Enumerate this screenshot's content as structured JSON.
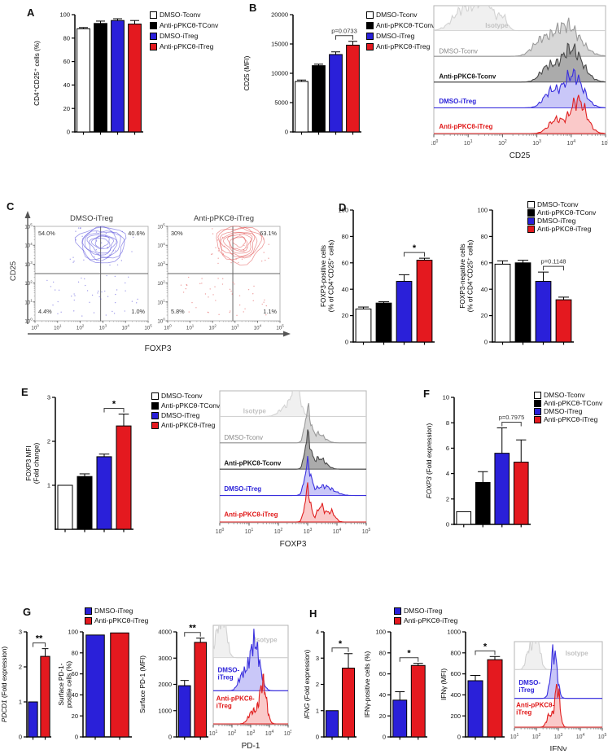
{
  "panels": {
    "A": "A",
    "B": "B",
    "C": "C",
    "D": "D",
    "E": "E",
    "F": "F",
    "G": "G",
    "H": "H"
  },
  "colors": {
    "blue": "#2a20d9",
    "red": "#e4191f",
    "black": "#000000",
    "white": "#ffffff"
  },
  "legends": {
    "four": {
      "items": [
        {
          "label": "DMSO-Tconv",
          "color": "#ffffff"
        },
        {
          "label": "Anti-pPKCθ-TConv",
          "color": "#000000"
        },
        {
          "label": "DMSO-iTreg",
          "color": "#2a20d9"
        },
        {
          "label": "Anti-pPKCθ-iTreg",
          "color": "#e4191f"
        }
      ]
    },
    "two": {
      "items": [
        {
          "label": "DMSO-iTreg",
          "color": "#2a20d9"
        },
        {
          "label": "Anti-pPKCθ-iTreg",
          "color": "#e4191f"
        }
      ]
    }
  },
  "chart_data": [
    {
      "id": "A",
      "type": "bar",
      "ylabel": [
        "CD4⁺CD25⁺ cells (%)"
      ],
      "ylim": [
        0,
        100
      ],
      "yticks": [
        0,
        20,
        40,
        60,
        80,
        100
      ],
      "categories": [
        "DMSO-Tconv",
        "Anti-pPKCθ-TConv",
        "DMSO-iTreg",
        "Anti-pPKCθ-iTreg"
      ],
      "values": [
        88,
        92.5,
        95,
        92
      ],
      "errors": [
        1,
        2,
        1.5,
        3
      ],
      "bar_colors": [
        "#ffffff",
        "#000000",
        "#2a20d9",
        "#e4191f"
      ]
    },
    {
      "id": "B",
      "type": "bar",
      "ylabel": [
        "CD25 (MFI)"
      ],
      "ylim": [
        0,
        20000
      ],
      "yticks": [
        0,
        5000,
        10000,
        15000,
        20000
      ],
      "categories": [
        "DMSO-Tconv",
        "Anti-pPKCθ-TConv",
        "DMSO-iTreg",
        "Anti-pPKCθ-iTreg"
      ],
      "values": [
        8600,
        11300,
        13200,
        14800
      ],
      "errors": [
        250,
        250,
        450,
        650
      ],
      "bar_colors": [
        "#ffffff",
        "#000000",
        "#2a20d9",
        "#e4191f"
      ],
      "sig": {
        "text": "p=0.0733",
        "from": 2,
        "to": 3
      }
    },
    {
      "id": "B_hist",
      "type": "ridge",
      "xlabel": "CD25",
      "xlim": [
        0,
        5
      ],
      "xticks_exp": [
        0,
        1,
        2,
        3,
        4,
        5
      ],
      "series": [
        {
          "label": "Isotype",
          "stroke": "#d2d2d2",
          "fill": "rgba(228,228,228,0.55)",
          "label_color": "#c2c2c2",
          "bold": true,
          "label_pos": [
            0.3,
            0.17
          ],
          "seed": 1,
          "peaks": [
            {
              "c": 0.9,
              "w": 0.45,
              "a": 0.75
            },
            {
              "c": 1.5,
              "w": 0.3,
              "a": 1
            },
            {
              "c": 2.0,
              "w": 0.18,
              "a": 0.45
            }
          ]
        },
        {
          "label": "DMSO-Tconv",
          "stroke": "#9a9a9a",
          "fill": "rgba(176,176,176,0.5)",
          "label_color": "#8a8a8a",
          "bold": false,
          "label_pos": [
            0.03,
            0.37
          ],
          "seed": 2,
          "peaks": [
            {
              "c": 3.85,
              "w": 0.55,
              "a": 1
            },
            {
              "c": 3.1,
              "w": 0.35,
              "a": 0.4
            }
          ]
        },
        {
          "label": "Anti-pPKCθ-Tconv",
          "stroke": "#4a4a4a",
          "fill": "rgba(115,115,115,0.6)",
          "label_color": "#161616",
          "bold": true,
          "label_pos": [
            0.03,
            0.565
          ],
          "seed": 3,
          "peaks": [
            {
              "c": 4.0,
              "w": 0.45,
              "a": 1
            },
            {
              "c": 3.3,
              "w": 0.3,
              "a": 0.4
            }
          ]
        },
        {
          "label": "DMSO-iTreg",
          "stroke": "#3a30dd",
          "fill": "rgba(100,95,235,0.35)",
          "label_color": "#2a20d9",
          "bold": true,
          "label_pos": [
            0.03,
            0.76
          ],
          "seed": 4,
          "peaks": [
            {
              "c": 4.05,
              "w": 0.4,
              "a": 1
            },
            {
              "c": 3.4,
              "w": 0.3,
              "a": 0.45
            }
          ]
        },
        {
          "label": "Anti-pPKCθ-iTreg",
          "stroke": "#e02020",
          "fill": "rgba(242,100,100,0.35)",
          "label_color": "#e01818",
          "bold": true,
          "label_pos": [
            0.03,
            0.955
          ],
          "seed": 5,
          "peaks": [
            {
              "c": 4.2,
              "w": 0.33,
              "a": 1
            },
            {
              "c": 3.55,
              "w": 0.3,
              "a": 0.4
            }
          ]
        }
      ]
    },
    {
      "id": "C",
      "type": "contour_panel",
      "xlabel": "FOXP3",
      "ylabel": "CD25",
      "xticks_exp": [
        0,
        1,
        2,
        3,
        4,
        5
      ],
      "yticks_exp": [
        0,
        1,
        2,
        3,
        4,
        5
      ],
      "gate": {
        "x": 2.9,
        "y": 2.5
      },
      "plots": [
        {
          "title": "DMSO-iTreg",
          "color": "#4a42d8",
          "center": [
            2.95,
            4.15
          ],
          "seed": 11,
          "quadrants": {
            "ul": "54.0%",
            "ur": "40.6%",
            "ll": "4.4%",
            "lr": "1.0%"
          }
        },
        {
          "title": "Anti-pPKCθ-iTreg",
          "color": "#e04545",
          "center": [
            3.2,
            4.2
          ],
          "seed": 17,
          "quadrants": {
            "ul": "30%",
            "ur": "63.1%",
            "ll": "5.8%",
            "lr": "1.1%"
          }
        }
      ]
    },
    {
      "id": "D1",
      "type": "bar",
      "ylabel": [
        "FOXP3-positive cells",
        "(% of CD4⁺CD25⁺ cells)"
      ],
      "ylim": [
        0,
        100
      ],
      "yticks": [
        0,
        20,
        40,
        60,
        80,
        100
      ],
      "categories": [
        "DMSO-Tconv",
        "Anti-pPKCθ-TConv",
        "DMSO-iTreg",
        "Anti-pPKCθ-iTreg"
      ],
      "values": [
        25,
        29.5,
        46,
        62
      ],
      "errors": [
        1.5,
        1,
        5,
        1.5
      ],
      "bar_colors": [
        "#ffffff",
        "#000000",
        "#2a20d9",
        "#e4191f"
      ],
      "sig": {
        "text": "*",
        "from": 2,
        "to": 3
      }
    },
    {
      "id": "D2",
      "type": "bar",
      "ylabel": [
        "FOXP3-negative cells",
        "(% of CD4⁺CD25⁺ cells)"
      ],
      "ylim": [
        0,
        100
      ],
      "yticks": [
        0,
        20,
        40,
        60,
        80,
        100
      ],
      "categories": [
        "DMSO-Tconv",
        "Anti-pPKCθ-TConv",
        "DMSO-iTreg",
        "Anti-pPKCθ-iTreg"
      ],
      "values": [
        59,
        60,
        46,
        32
      ],
      "errors": [
        2.5,
        2,
        7,
        2
      ],
      "bar_colors": [
        "#ffffff",
        "#000000",
        "#2a20d9",
        "#e4191f"
      ],
      "sig": {
        "text": "p=0.1148",
        "from": 2,
        "to": 3
      }
    },
    {
      "id": "E",
      "type": "bar",
      "ylabel": [
        "FOXP3 MFI",
        "(Fold change)"
      ],
      "ylim": [
        0,
        3
      ],
      "yticks": [
        1,
        2,
        3
      ],
      "categories": [
        "DMSO-Tconv",
        "Anti-pPKCθ-TConv",
        "DMSO-iTreg",
        "Anti-pPKCθ-iTreg"
      ],
      "values": [
        1,
        1.2,
        1.65,
        2.35
      ],
      "errors": [
        0,
        0.06,
        0.06,
        0.27
      ],
      "bar_colors": [
        "#ffffff",
        "#000000",
        "#2a20d9",
        "#e4191f"
      ],
      "sig": {
        "text": "*",
        "from": 2,
        "to": 3
      }
    },
    {
      "id": "E_hist",
      "type": "ridge",
      "xlabel": "FOXP3",
      "xlim": [
        0,
        5
      ],
      "xticks_exp": [
        0,
        1,
        2,
        3,
        4,
        5
      ],
      "series": [
        {
          "label": "Isotype",
          "stroke": "#d2d2d2",
          "fill": "rgba(228,228,228,0.55)",
          "label_color": "#c2c2c2",
          "bold": true,
          "label_pos": [
            0.16,
            0.17
          ],
          "seed": 6,
          "peaks": [
            {
              "c": 2.6,
              "w": 0.2,
              "a": 1
            },
            {
              "c": 2.25,
              "w": 0.3,
              "a": 0.3
            }
          ]
        },
        {
          "label": "DMSO-Tconv",
          "stroke": "#9a9a9a",
          "fill": "rgba(176,176,176,0.5)",
          "label_color": "#8a8a8a",
          "bold": false,
          "label_pos": [
            0.03,
            0.37
          ],
          "seed": 7,
          "peaks": [
            {
              "c": 3.0,
              "w": 0.14,
              "a": 1
            },
            {
              "c": 3.35,
              "w": 0.3,
              "a": 0.3
            }
          ]
        },
        {
          "label": "Anti-pPKCθ-Tconv",
          "stroke": "#4a4a4a",
          "fill": "rgba(115,115,115,0.6)",
          "label_color": "#161616",
          "bold": true,
          "label_pos": [
            0.03,
            0.565
          ],
          "seed": 8,
          "peaks": [
            {
              "c": 3.0,
              "w": 0.14,
              "a": 1
            },
            {
              "c": 3.4,
              "w": 0.3,
              "a": 0.35
            }
          ]
        },
        {
          "label": "DMSO-iTreg",
          "stroke": "#3a30dd",
          "fill": "rgba(100,95,235,0.35)",
          "label_color": "#2a20d9",
          "bold": true,
          "label_pos": [
            0.03,
            0.76
          ],
          "seed": 9,
          "peaks": [
            {
              "c": 3.0,
              "w": 0.15,
              "a": 1
            },
            {
              "c": 3.55,
              "w": 0.45,
              "a": 0.32
            }
          ]
        },
        {
          "label": "Anti-pPKCθ-iTreg",
          "stroke": "#e02020",
          "fill": "rgba(242,100,100,0.35)",
          "label_color": "#e01818",
          "bold": true,
          "label_pos": [
            0.03,
            0.955
          ],
          "seed": 10,
          "peaks": [
            {
              "c": 3.0,
              "w": 0.14,
              "a": 1
            },
            {
              "c": 3.45,
              "w": 0.18,
              "a": 0.5
            },
            {
              "c": 3.8,
              "w": 0.18,
              "a": 0.32
            }
          ]
        }
      ]
    },
    {
      "id": "F",
      "type": "bar",
      "ylabel": [
        "FOXP3 (Fold expression)"
      ],
      "italic_prefix": "FOXP3",
      "ylim": [
        0,
        10
      ],
      "yticks": [
        0,
        2,
        4,
        6,
        8,
        10
      ],
      "categories": [
        "DMSO-Tconv",
        "Anti-pPKCθ-TConv",
        "DMSO-iTreg",
        "Anti-pPKCθ-iTreg"
      ],
      "values": [
        1,
        3.3,
        5.6,
        4.9
      ],
      "errors": [
        0,
        0.85,
        2,
        1.75
      ],
      "bar_colors": [
        "#ffffff",
        "#000000",
        "#2a20d9",
        "#e4191f"
      ],
      "sig": {
        "text": "p=0.7975",
        "from": 2,
        "to": 3
      }
    },
    {
      "id": "G1",
      "type": "bar",
      "ylabel": [
        "PDCD1 (Fold expression)"
      ],
      "italic_prefix": "PDCD1",
      "ylim": [
        0,
        3
      ],
      "yticks": [
        0,
        1,
        2,
        3
      ],
      "categories": [
        "DMSO-iTreg",
        "Anti-pPKCθ-iTreg"
      ],
      "values": [
        1,
        2.3
      ],
      "errors": [
        0,
        0.22
      ],
      "bar_colors": [
        "#2a20d9",
        "#e4191f"
      ],
      "sig": {
        "text": "**",
        "from": 0,
        "to": 1
      }
    },
    {
      "id": "G2",
      "type": "bar",
      "ylabel": [
        "Surface PD-1-",
        "positie cells (%)"
      ],
      "ylim": [
        0,
        100
      ],
      "yticks": [
        0,
        20,
        40,
        60,
        80,
        100
      ],
      "categories": [
        "DMSO-iTreg",
        "Anti-pPKCθ-iTreg"
      ],
      "values": [
        97,
        99
      ],
      "errors": [
        0,
        0
      ],
      "bar_colors": [
        "#2a20d9",
        "#e4191f"
      ]
    },
    {
      "id": "G3",
      "type": "bar",
      "ylabel": [
        "Surface PD-1 (MFI)"
      ],
      "ylim": [
        0,
        4000
      ],
      "yticks": [
        0,
        1000,
        2000,
        3000,
        4000
      ],
      "categories": [
        "DMSO-iTreg",
        "Anti-pPKCθ-iTreg"
      ],
      "values": [
        1950,
        3600
      ],
      "errors": [
        200,
        160
      ],
      "bar_colors": [
        "#2a20d9",
        "#e4191f"
      ],
      "sig": {
        "text": "**",
        "from": 0,
        "to": 1
      }
    },
    {
      "id": "G_hist",
      "type": "ridge",
      "xlabel": "PD-1",
      "xlim": [
        1,
        5
      ],
      "xticks_exp": [
        1,
        2,
        3,
        4,
        5
      ],
      "series": [
        {
          "label": "Isotype",
          "stroke": "#d2d2d2",
          "fill": "rgba(228,228,228,0.55)",
          "label_color": "#c2c2c2",
          "bold": true,
          "label_pos": [
            0.55,
            0.17
          ],
          "seed": 21,
          "peaks": [
            {
              "c": 1.55,
              "w": 0.25,
              "a": 1
            },
            {
              "c": 1.2,
              "w": 0.18,
              "a": 0.55
            }
          ]
        },
        {
          "label": [
            "DMSO-",
            "iTreg"
          ],
          "stroke": "#3a30dd",
          "fill": "rgba(100,95,235,0.35)",
          "label_color": "#2a20d9",
          "bold": true,
          "label_pos": [
            0.06,
            0.47
          ],
          "amp": 1.25,
          "seed": 22,
          "peaks": [
            {
              "c": 3.2,
              "w": 0.38,
              "a": 1
            },
            {
              "c": 2.55,
              "w": 0.3,
              "a": 0.3
            }
          ]
        },
        {
          "label": [
            "Anti-pPKCθ-",
            "iTreg"
          ],
          "stroke": "#e02020",
          "fill": "rgba(242,100,100,0.35)",
          "label_color": "#e01818",
          "bold": true,
          "label_pos": [
            0.04,
            0.76
          ],
          "seed": 23,
          "peaks": [
            {
              "c": 3.65,
              "w": 0.26,
              "a": 1
            },
            {
              "c": 3.1,
              "w": 0.3,
              "a": 0.3
            }
          ]
        }
      ]
    },
    {
      "id": "H1",
      "type": "bar",
      "ylabel": [
        "IFNG (Fold expression)"
      ],
      "italic_prefix": "IFNG",
      "ylim": [
        0,
        4
      ],
      "yticks": [
        0,
        1,
        2,
        3,
        4
      ],
      "categories": [
        "DMSO-iTreg",
        "Anti-pPKCθ-iTreg"
      ],
      "values": [
        1,
        2.62
      ],
      "errors": [
        0,
        0.55
      ],
      "bar_colors": [
        "#2a20d9",
        "#e4191f"
      ],
      "sig": {
        "text": "*",
        "from": 0,
        "to": 1
      }
    },
    {
      "id": "H2",
      "type": "bar",
      "ylabel": [
        "IFNγ-positive cells (%)"
      ],
      "ylim": [
        0,
        100
      ],
      "yticks": [
        0,
        20,
        40,
        60,
        80,
        100
      ],
      "categories": [
        "DMSO-iTreg",
        "Anti-pPKCθ-iTreg"
      ],
      "values": [
        35,
        68
      ],
      "errors": [
        8,
        2
      ],
      "bar_colors": [
        "#2a20d9",
        "#e4191f"
      ],
      "sig": {
        "text": "*",
        "from": 0,
        "to": 1
      }
    },
    {
      "id": "H3",
      "type": "bar",
      "ylabel": [
        "IFNγ (MFI)"
      ],
      "ylim": [
        0,
        1000
      ],
      "yticks": [
        0,
        200,
        400,
        600,
        800,
        1000
      ],
      "categories": [
        "DMSO-iTreg",
        "Anti-pPKCθ-iTreg"
      ],
      "values": [
        535,
        735
      ],
      "errors": [
        50,
        30
      ],
      "bar_colors": [
        "#2a20d9",
        "#e4191f"
      ],
      "sig": {
        "text": "*",
        "from": 0,
        "to": 1
      }
    },
    {
      "id": "H_hist",
      "type": "ridge",
      "xlabel": "IFNγ",
      "xlim": [
        1,
        5
      ],
      "xticks_exp": [
        1,
        2,
        3,
        4,
        5
      ],
      "series": [
        {
          "label": "Isotype",
          "stroke": "#d2d2d2",
          "fill": "rgba(228,228,228,0.55)",
          "label_color": "#c2c2c2",
          "bold": true,
          "label_pos": [
            0.58,
            0.16
          ],
          "seed": 31,
          "peaks": [
            {
              "c": 2.0,
              "w": 0.22,
              "a": 1
            },
            {
              "c": 1.65,
              "w": 0.18,
              "a": 0.5
            }
          ]
        },
        {
          "label": [
            "DMSO-",
            "iTreg"
          ],
          "stroke": "#3a30dd",
          "fill": "rgba(100,95,235,0.35)",
          "label_color": "#2a20d9",
          "bold": true,
          "label_pos": [
            0.05,
            0.5
          ],
          "amp": 1.25,
          "seed": 32,
          "peaks": [
            {
              "c": 2.8,
              "w": 0.2,
              "a": 1
            }
          ]
        },
        {
          "label": [
            "Anti-pPKCθ-",
            "iTreg"
          ],
          "stroke": "#e02020",
          "fill": "rgba(242,100,100,0.35)",
          "label_color": "#e01818",
          "bold": true,
          "label_pos": [
            0.02,
            0.76
          ],
          "seed": 33,
          "peaks": [
            {
              "c": 2.95,
              "w": 0.16,
              "a": 1
            },
            {
              "c": 2.6,
              "w": 0.18,
              "a": 0.3
            }
          ]
        }
      ]
    }
  ]
}
